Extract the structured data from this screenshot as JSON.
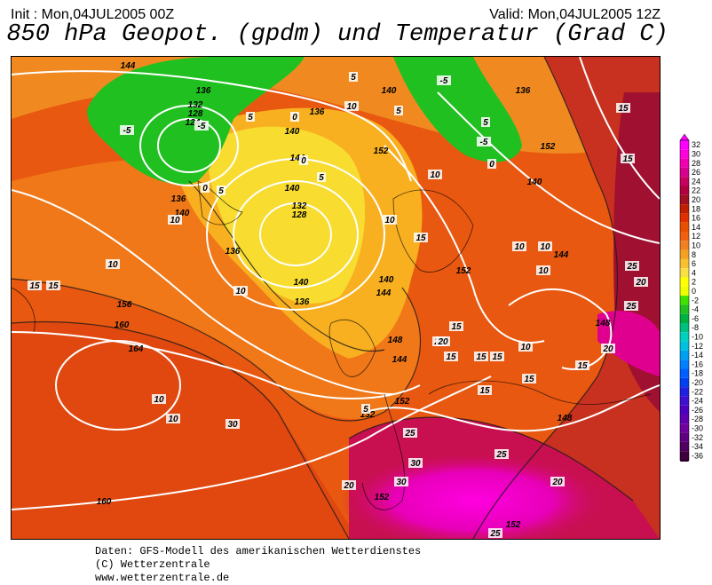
{
  "header": {
    "init": "Init : Mon,04JUL2005 00Z",
    "valid": "Valid: Mon,04JUL2005 12Z",
    "title": "850 hPa Geopot. (gpdm) und Temperatur (Grad C)"
  },
  "footer": {
    "line1": "Daten: GFS-Modell des amerikanischen Wetterdienstes",
    "line2": "(C) Wetterzentrale",
    "line3": "www.wetterzentrale.de"
  },
  "legend": {
    "values": [
      "32",
      "30",
      "28",
      "26",
      "24",
      "22",
      "20",
      "18",
      "16",
      "14",
      "12",
      "10",
      "8",
      "6",
      "4",
      "2",
      "0",
      "-2",
      "-4",
      "-6",
      "-8",
      "-10",
      "-12",
      "-14",
      "-16",
      "-18",
      "-20",
      "-22",
      "-24",
      "-26",
      "-28",
      "-30",
      "-32",
      "-34",
      "-36"
    ],
    "colors": [
      "#ff00ff",
      "#ff00dd",
      "#f000b0",
      "#d80090",
      "#c80060",
      "#b00040",
      "#a01020",
      "#c02000",
      "#e03000",
      "#e85000",
      "#f06010",
      "#f08020",
      "#f4a020",
      "#f8c030",
      "#f8e040",
      "#ffff00",
      "#f0ff00",
      "#40e000",
      "#20c020",
      "#00b040",
      "#00c080",
      "#00d0c0",
      "#00c0e0",
      "#00a0f0",
      "#0080ff",
      "#0060ff",
      "#0040f0",
      "#2020e0",
      "#4010d0",
      "#5000c0",
      "#6000b0",
      "#7000a0",
      "#600080",
      "#500060",
      "#400040"
    ]
  },
  "map_labels": {
    "geopotential": [
      "144",
      "136",
      "132",
      "128",
      "124",
      "136",
      "140",
      "136",
      "140",
      "144",
      "140",
      "132",
      "128",
      "136",
      "140",
      "136",
      "140",
      "144",
      "148",
      "152",
      "152",
      "152",
      "156",
      "160",
      "164",
      "160",
      "148",
      "152",
      "140",
      "144",
      "148",
      "144",
      "140",
      "136",
      "132",
      "152",
      "152"
    ],
    "temperature": [
      "-5",
      "-5",
      "5",
      "5",
      "0",
      "0",
      "5",
      "5",
      "-5",
      "-5",
      "5",
      "0",
      "10",
      "10",
      "10",
      "10",
      "10",
      "15",
      "15",
      "10",
      "10",
      "10",
      "10",
      "15",
      "15",
      "20",
      "15",
      "15",
      "15",
      "15",
      "15",
      "15",
      "15",
      "15",
      "20",
      "20",
      "25",
      "25",
      "20",
      "25",
      "30",
      "20",
      "25",
      "30",
      "20",
      "25",
      "30",
      "10",
      "10",
      "10",
      "5",
      "5",
      "0"
    ]
  }
}
